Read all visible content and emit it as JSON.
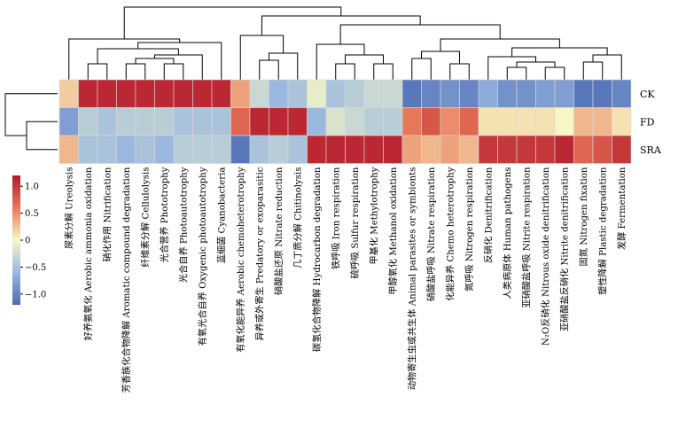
{
  "chart_data": {
    "type": "heatmap",
    "rows": [
      "CK",
      "FD",
      "SRA"
    ],
    "columns": [
      "尿素分解 Ureolysis",
      "好养氨氧化 Aerobic ammonia oxidation",
      "硝化作用 Nitrification",
      "芳香族化合物降解 Aromatic compound degradation",
      "纤维素分解 Cellulolysis",
      "光合营养 Phototrophy",
      "光合自养 Photoautotrophy",
      "有氧光合自养 Oxygenic photoautotrophy",
      "蓝细菌 Cyanobacteria",
      "有氧化能异养 Aerobic chemoheterotrophy",
      "异养或外寄生 Predatory or exoparasitic",
      "硝酸盐还原 Nitrate reduction",
      "几丁质分解 Chitinolysis",
      "碳氢化合物降解 Hydrocarbon degradation",
      "铁呼吸 Iron respiration",
      "硫呼吸 Sulfur respiration",
      "甲基化 Methylotrophy",
      "甲醇氧化 Methanol oxidation",
      "动物寄生虫或共生体 Animal parasites or symbionts",
      "硝酸盐呼吸 Nitrate respiration",
      "化能异养 Chemo heterotrophy",
      "氮呼吸 Nitrogen respiration",
      "反硝化 Denitrification",
      "人类病原体 Human pathogens",
      "亚硝酸盐呼吸 Nitrite respiration",
      "N₂O反硝化 Nitrous oxide denitrification",
      "亚硝酸盐反硝化 Nitrite denitrification",
      "固氮 Nitrogen fixation",
      "塑性降解 Plastic degradation",
      "发酵 Fermentation"
    ],
    "values": [
      [
        0.2,
        1.1,
        1.1,
        1.1,
        1.1,
        1.1,
        1.1,
        1.1,
        1.1,
        0.4,
        -0.3,
        -0.6,
        -0.5,
        -0.1,
        -0.5,
        -0.4,
        -0.3,
        -0.3,
        -1.1,
        -1.0,
        -0.9,
        -1.0,
        -0.7,
        -0.9,
        -0.9,
        -0.8,
        -0.8,
        -1.1,
        -1.1,
        -1.0
      ],
      [
        -0.8,
        -0.4,
        -0.5,
        -0.4,
        -0.4,
        -0.4,
        -0.5,
        -0.5,
        -0.5,
        0.7,
        1.1,
        1.1,
        1.1,
        -0.6,
        -0.2,
        -0.3,
        -0.4,
        -0.4,
        0.6,
        0.8,
        0.5,
        0.7,
        0.1,
        0.1,
        0.1,
        0.1,
        0.0,
        0.3,
        0.3,
        0.1
      ],
      [
        0.3,
        -0.5,
        -0.5,
        -0.6,
        -0.5,
        -0.6,
        -0.4,
        -0.4,
        -0.4,
        -1.1,
        -0.5,
        -0.4,
        -0.5,
        1.1,
        1.1,
        1.1,
        1.1,
        1.1,
        0.4,
        0.3,
        0.4,
        0.3,
        1.0,
        1.0,
        1.0,
        1.0,
        1.1,
        0.7,
        0.8,
        1.0
      ]
    ],
    "colorbar": {
      "ticks": [
        1.0,
        0.5,
        0,
        -0.5,
        -1.0
      ],
      "tick_labels": [
        "1.0",
        "0.5",
        "0",
        "−0.5",
        "−1.0"
      ],
      "range": [
        -1.2,
        1.2
      ]
    },
    "colors": {
      "high": "#b2182b",
      "mid": "#f7f7c4",
      "low": "#4c6bb3"
    }
  }
}
